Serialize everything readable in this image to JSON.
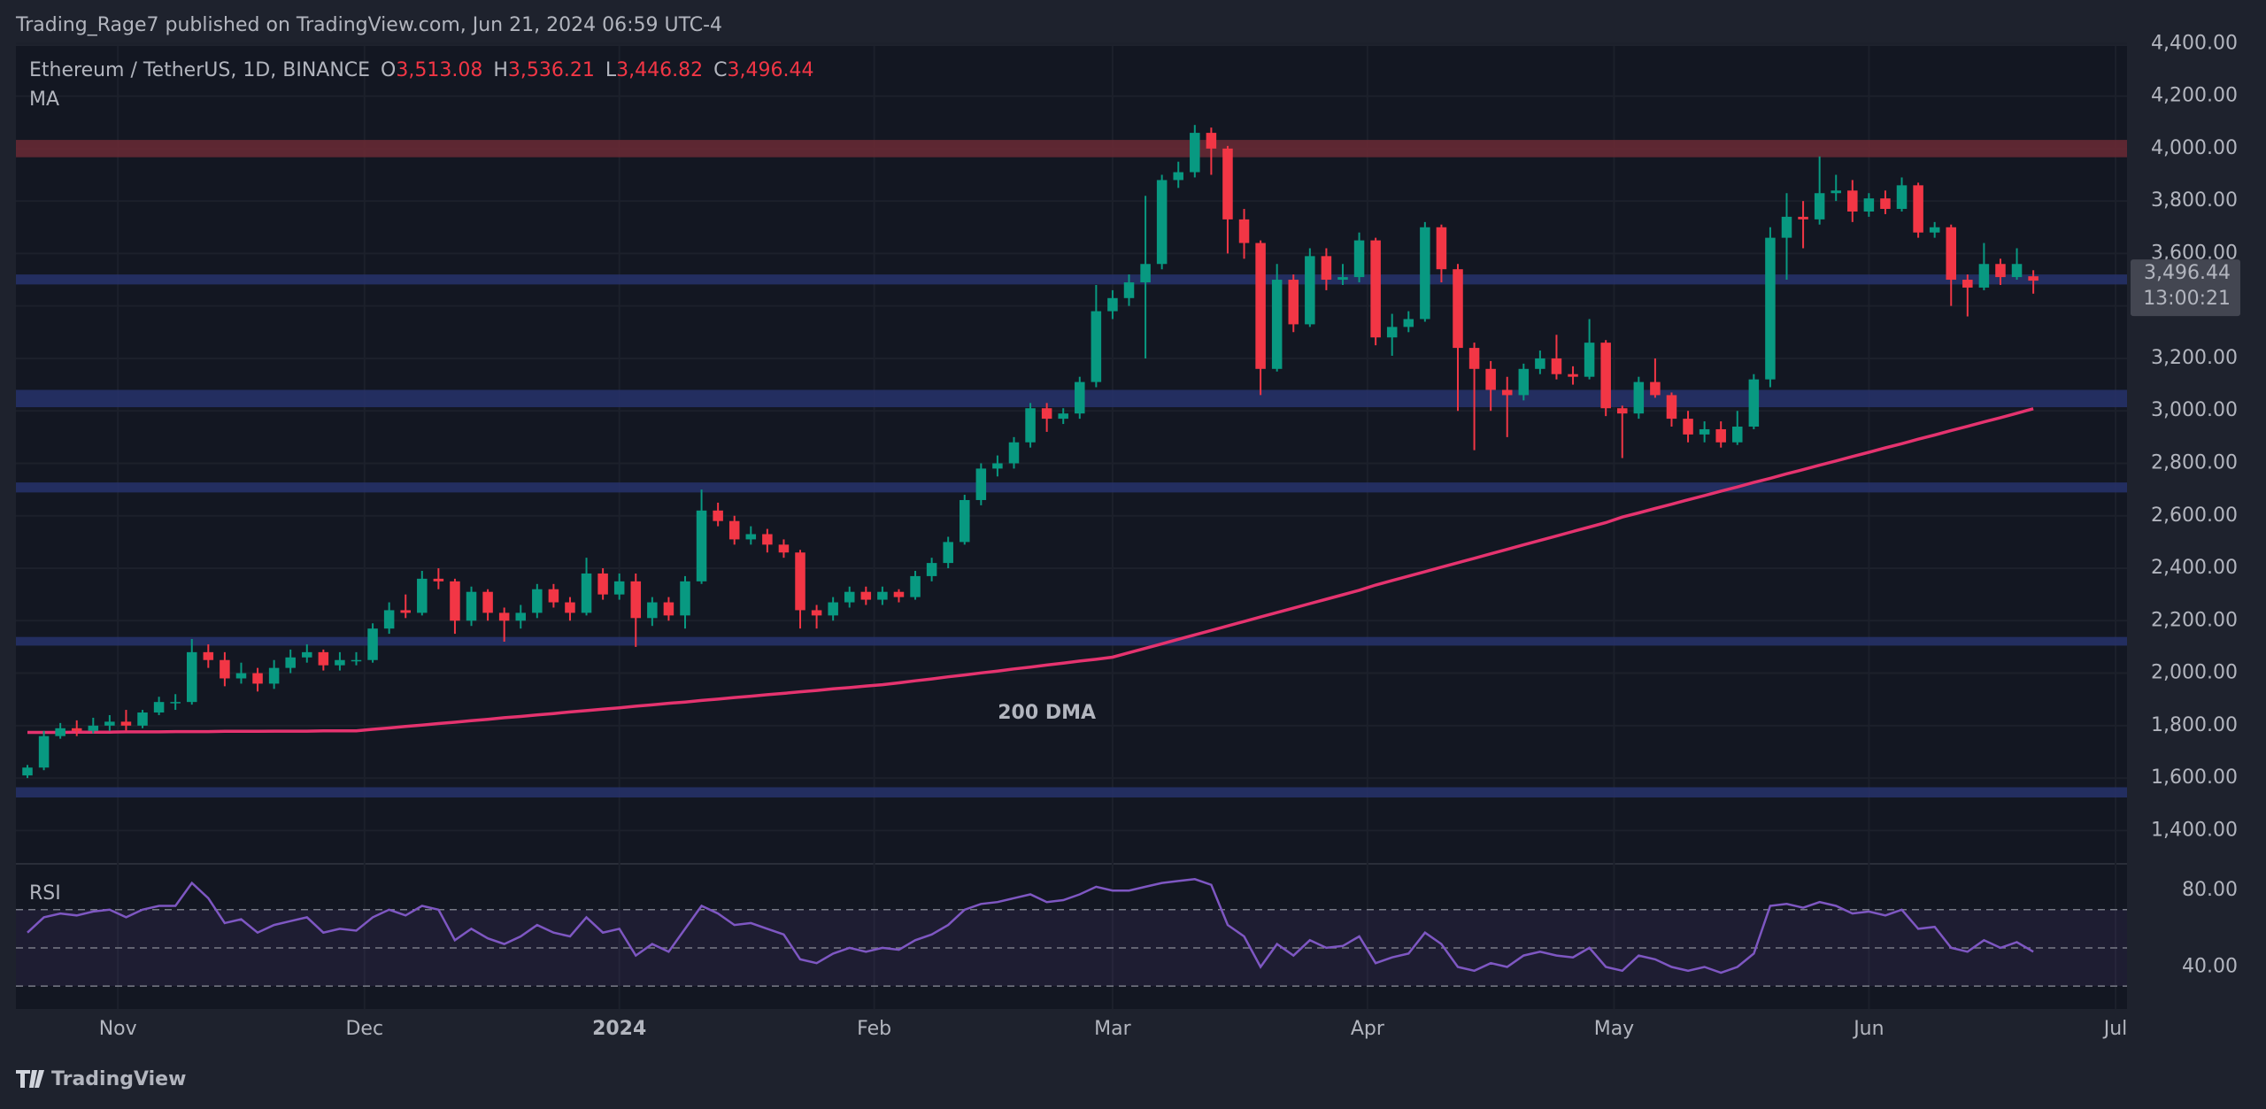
{
  "header": {
    "publisher": "Trading_Rage7 published on TradingView.com, Jun 21, 2024 06:59 UTC-4"
  },
  "footer": {
    "brand": "TradingView"
  },
  "chart_data": [
    {
      "type": "candlestick",
      "title": "Ethereum / TetherUS, 1D, BINANCE",
      "ohlc_legend": {
        "keys": [
          "O",
          "H",
          "L",
          "C"
        ],
        "values": [
          3513.08,
          3536.21,
          3446.82,
          3496.44
        ],
        "value_labels": [
          "3,513.08",
          "3,536.21",
          "3,446.82",
          "3,496.44"
        ]
      },
      "up_color": "#089981",
      "down_color": "#f23645",
      "candles": [
        [
          1610,
          1650,
          1600,
          1640
        ],
        [
          1640,
          1780,
          1630,
          1760
        ],
        [
          1760,
          1810,
          1750,
          1790
        ],
        [
          1790,
          1820,
          1760,
          1780
        ],
        [
          1780,
          1830,
          1770,
          1800
        ],
        [
          1800,
          1840,
          1780,
          1815
        ],
        [
          1815,
          1860,
          1780,
          1800
        ],
        [
          1800,
          1860,
          1790,
          1850
        ],
        [
          1850,
          1910,
          1840,
          1890
        ],
        [
          1890,
          1920,
          1860,
          1890
        ],
        [
          1890,
          2130,
          1880,
          2080
        ],
        [
          2080,
          2110,
          2020,
          2050
        ],
        [
          2050,
          2080,
          1950,
          1980
        ],
        [
          1980,
          2040,
          1960,
          2000
        ],
        [
          2000,
          2020,
          1930,
          1960
        ],
        [
          1960,
          2050,
          1940,
          2020
        ],
        [
          2020,
          2090,
          2000,
          2060
        ],
        [
          2060,
          2110,
          2040,
          2080
        ],
        [
          2080,
          2090,
          2010,
          2030
        ],
        [
          2030,
          2080,
          2010,
          2050
        ],
        [
          2050,
          2080,
          2030,
          2050
        ],
        [
          2050,
          2190,
          2040,
          2170
        ],
        [
          2170,
          2270,
          2150,
          2240
        ],
        [
          2240,
          2300,
          2210,
          2230
        ],
        [
          2230,
          2390,
          2220,
          2360
        ],
        [
          2360,
          2400,
          2320,
          2350
        ],
        [
          2350,
          2360,
          2150,
          2200
        ],
        [
          2200,
          2330,
          2180,
          2310
        ],
        [
          2310,
          2320,
          2200,
          2230
        ],
        [
          2230,
          2250,
          2120,
          2200
        ],
        [
          2200,
          2260,
          2170,
          2230
        ],
        [
          2230,
          2340,
          2210,
          2320
        ],
        [
          2320,
          2340,
          2250,
          2270
        ],
        [
          2270,
          2290,
          2200,
          2230
        ],
        [
          2230,
          2440,
          2220,
          2380
        ],
        [
          2380,
          2400,
          2280,
          2300
        ],
        [
          2300,
          2380,
          2280,
          2350
        ],
        [
          2350,
          2380,
          2100,
          2210
        ],
        [
          2210,
          2290,
          2180,
          2270
        ],
        [
          2270,
          2290,
          2200,
          2220
        ],
        [
          2220,
          2370,
          2170,
          2350
        ],
        [
          2350,
          2700,
          2340,
          2620
        ],
        [
          2620,
          2650,
          2560,
          2580
        ],
        [
          2580,
          2600,
          2490,
          2510
        ],
        [
          2510,
          2560,
          2490,
          2530
        ],
        [
          2530,
          2550,
          2460,
          2490
        ],
        [
          2490,
          2510,
          2440,
          2460
        ],
        [
          2460,
          2470,
          2170,
          2240
        ],
        [
          2240,
          2260,
          2170,
          2220
        ],
        [
          2220,
          2290,
          2200,
          2270
        ],
        [
          2270,
          2330,
          2250,
          2310
        ],
        [
          2310,
          2330,
          2260,
          2280
        ],
        [
          2280,
          2330,
          2260,
          2310
        ],
        [
          2310,
          2320,
          2270,
          2290
        ],
        [
          2290,
          2390,
          2280,
          2370
        ],
        [
          2370,
          2440,
          2350,
          2420
        ],
        [
          2420,
          2520,
          2400,
          2500
        ],
        [
          2500,
          2680,
          2490,
          2660
        ],
        [
          2660,
          2800,
          2640,
          2780
        ],
        [
          2780,
          2830,
          2750,
          2800
        ],
        [
          2800,
          2900,
          2780,
          2880
        ],
        [
          2880,
          3030,
          2860,
          3010
        ],
        [
          3010,
          3030,
          2920,
          2970
        ],
        [
          2970,
          3010,
          2950,
          2990
        ],
        [
          2990,
          3130,
          2970,
          3110
        ],
        [
          3110,
          3480,
          3090,
          3380
        ],
        [
          3380,
          3460,
          3350,
          3430
        ],
        [
          3430,
          3520,
          3400,
          3490
        ],
        [
          3490,
          3820,
          3200,
          3560
        ],
        [
          3560,
          3900,
          3540,
          3880
        ],
        [
          3880,
          3950,
          3850,
          3910
        ],
        [
          3910,
          4090,
          3890,
          4060
        ],
        [
          4060,
          4080,
          3900,
          4000
        ],
        [
          4000,
          4010,
          3600,
          3730
        ],
        [
          3730,
          3770,
          3580,
          3640
        ],
        [
          3640,
          3650,
          3060,
          3160
        ],
        [
          3160,
          3560,
          3150,
          3500
        ],
        [
          3500,
          3520,
          3300,
          3330
        ],
        [
          3330,
          3620,
          3320,
          3590
        ],
        [
          3590,
          3620,
          3460,
          3500
        ],
        [
          3500,
          3560,
          3480,
          3510
        ],
        [
          3510,
          3680,
          3490,
          3650
        ],
        [
          3650,
          3660,
          3250,
          3280
        ],
        [
          3280,
          3370,
          3210,
          3320
        ],
        [
          3320,
          3380,
          3300,
          3350
        ],
        [
          3350,
          3720,
          3340,
          3700
        ],
        [
          3700,
          3710,
          3490,
          3540
        ],
        [
          3540,
          3560,
          3000,
          3240
        ],
        [
          3240,
          3260,
          2850,
          3160
        ],
        [
          3160,
          3190,
          3000,
          3080
        ],
        [
          3080,
          3130,
          2900,
          3060
        ],
        [
          3060,
          3180,
          3040,
          3160
        ],
        [
          3160,
          3230,
          3140,
          3200
        ],
        [
          3200,
          3290,
          3120,
          3140
        ],
        [
          3140,
          3170,
          3100,
          3130
        ],
        [
          3130,
          3350,
          3120,
          3260
        ],
        [
          3260,
          3270,
          2980,
          3010
        ],
        [
          3010,
          3020,
          2820,
          2990
        ],
        [
          2990,
          3130,
          2970,
          3110
        ],
        [
          3110,
          3200,
          3050,
          3060
        ],
        [
          3060,
          3070,
          2940,
          2970
        ],
        [
          2970,
          3000,
          2880,
          2910
        ],
        [
          2910,
          2960,
          2880,
          2930
        ],
        [
          2930,
          2960,
          2860,
          2880
        ],
        [
          2880,
          3000,
          2870,
          2940
        ],
        [
          2940,
          3140,
          2930,
          3120
        ],
        [
          3120,
          3700,
          3090,
          3660
        ],
        [
          3660,
          3830,
          3500,
          3740
        ],
        [
          3740,
          3800,
          3620,
          3730
        ],
        [
          3730,
          3970,
          3710,
          3830
        ],
        [
          3830,
          3900,
          3800,
          3840
        ],
        [
          3840,
          3880,
          3720,
          3760
        ],
        [
          3760,
          3830,
          3740,
          3810
        ],
        [
          3810,
          3840,
          3750,
          3770
        ],
        [
          3770,
          3890,
          3760,
          3860
        ],
        [
          3860,
          3870,
          3660,
          3680
        ],
        [
          3680,
          3720,
          3660,
          3700
        ],
        [
          3700,
          3710,
          3400,
          3500
        ],
        [
          3500,
          3520,
          3360,
          3470
        ],
        [
          3470,
          3640,
          3460,
          3560
        ],
        [
          3560,
          3580,
          3480,
          3510
        ],
        [
          3510,
          3620,
          3500,
          3560
        ],
        [
          3513.08,
          3536.21,
          3446.82,
          3496.44
        ]
      ],
      "series": [
        {
          "name": "MA",
          "color": "#e5336f",
          "values": [
            1774,
            1774,
            1774,
            1775,
            1775,
            1775,
            1776,
            1776,
            1776,
            1777,
            1777,
            1777,
            1778,
            1778,
            1778,
            1779,
            1779,
            1779,
            1780,
            1780,
            1780,
            1786,
            1791,
            1797,
            1802,
            1808,
            1813,
            1819,
            1824,
            1830,
            1835,
            1841,
            1846,
            1852,
            1857,
            1863,
            1868,
            1874,
            1879,
            1885,
            1890,
            1896,
            1901,
            1907,
            1912,
            1918,
            1923,
            1929,
            1934,
            1940,
            1945,
            1951,
            1956,
            1963,
            1971,
            1978,
            1986,
            1993,
            2001,
            2008,
            2016,
            2023,
            2031,
            2038,
            2046,
            2053,
            2061,
            2078,
            2095,
            2112,
            2129,
            2146,
            2163,
            2180,
            2197,
            2214,
            2231,
            2248,
            2265,
            2282,
            2299,
            2316,
            2336,
            2353,
            2370,
            2387,
            2404,
            2421,
            2438,
            2455,
            2472,
            2489,
            2506,
            2523,
            2540,
            2557,
            2574,
            2595,
            2611,
            2628,
            2644,
            2661,
            2677,
            2694,
            2710,
            2727,
            2743,
            2760,
            2776,
            2793,
            2809,
            2826,
            2842,
            2859,
            2875,
            2892,
            2908,
            2925,
            2941,
            2958,
            2974,
            2991,
            3008
          ]
        }
      ],
      "annotations": [
        {
          "text": "200 DMA",
          "x": 62,
          "y": 1846,
          "color": "#e5336f"
        }
      ],
      "zones": [
        {
          "low": 3967,
          "high": 4033,
          "color": "#6b2a35"
        },
        {
          "low": 3482,
          "high": 3520,
          "color": "#27336b"
        },
        {
          "low": 3014,
          "high": 3080,
          "color": "#27336b"
        },
        {
          "low": 2689,
          "high": 2727,
          "color": "#27336b"
        },
        {
          "low": 2105,
          "high": 2138,
          "color": "#27336b"
        },
        {
          "low": 1526,
          "high": 1565,
          "color": "#27336b"
        }
      ],
      "last_price": {
        "value": 3496.44,
        "label": "3,496.44"
      },
      "countdown": "13:00:21",
      "xlim": [
        -0.7,
        127.7
      ],
      "xticks": [
        {
          "value": 5.5,
          "label": "Nov"
        },
        {
          "value": 20.5,
          "label": "Dec"
        },
        {
          "value": 36,
          "label": "2024"
        },
        {
          "value": 51.5,
          "label": "Feb"
        },
        {
          "value": 66,
          "label": "Mar"
        },
        {
          "value": 81.5,
          "label": "Apr"
        },
        {
          "value": 96.5,
          "label": "May"
        },
        {
          "value": 112,
          "label": "Jun"
        },
        {
          "value": 127,
          "label": "Jul"
        }
      ],
      "ylim": [
        1273,
        4391
      ],
      "yticks": [
        {
          "value": 1400,
          "label": "1,400.00"
        },
        {
          "value": 1600,
          "label": "1,600.00"
        },
        {
          "value": 1800,
          "label": "1,800.00"
        },
        {
          "value": 2000,
          "label": "2,000.00"
        },
        {
          "value": 2200,
          "label": "2,200.00"
        },
        {
          "value": 2400,
          "label": "2,400.00"
        },
        {
          "value": 2600,
          "label": "2,600.00"
        },
        {
          "value": 2800,
          "label": "2,800.00"
        },
        {
          "value": 3000,
          "label": "3,000.00"
        },
        {
          "value": 3200,
          "label": "3,200.00"
        },
        {
          "value": 3400,
          "label": "3,400.00"
        },
        {
          "value": 3600,
          "label": "3,600.00"
        },
        {
          "value": 3800,
          "label": "3,800.00"
        },
        {
          "value": 4000,
          "label": "4,000.00"
        },
        {
          "value": 4200,
          "label": "4,200.00"
        },
        {
          "value": 4400,
          "label": "4,400.00"
        }
      ],
      "grid": true
    },
    {
      "type": "line",
      "title": "RSI",
      "color": "#7e57c2",
      "values": [
        58,
        66,
        68,
        67,
        69,
        70,
        66,
        70,
        72,
        72,
        84,
        76,
        63,
        65,
        58,
        62,
        64,
        66,
        58,
        60,
        59,
        66,
        70,
        67,
        72,
        70,
        54,
        60,
        55,
        52,
        56,
        62,
        58,
        56,
        66,
        58,
        60,
        46,
        52,
        48,
        60,
        72,
        68,
        62,
        63,
        60,
        57,
        44,
        42,
        47,
        50,
        48,
        50,
        49,
        54,
        57,
        62,
        70,
        73,
        74,
        76,
        78,
        74,
        75,
        78,
        82,
        80,
        80,
        82,
        84,
        85,
        86,
        83,
        62,
        56,
        40,
        52,
        46,
        54,
        50,
        51,
        56,
        42,
        45,
        47,
        58,
        52,
        40,
        38,
        42,
        40,
        46,
        48,
        46,
        45,
        50,
        40,
        38,
        46,
        44,
        40,
        38,
        40,
        37,
        40,
        47,
        72,
        73,
        71,
        74,
        72,
        68,
        69,
        67,
        70,
        60,
        61,
        50,
        48,
        54,
        50,
        53,
        48
      ],
      "levels": [
        30,
        50,
        70
      ],
      "ylim": [
        18,
        94
      ],
      "yticks": [
        {
          "value": 40,
          "label": "40.00"
        },
        {
          "value": 80,
          "label": "80.00"
        }
      ]
    }
  ]
}
